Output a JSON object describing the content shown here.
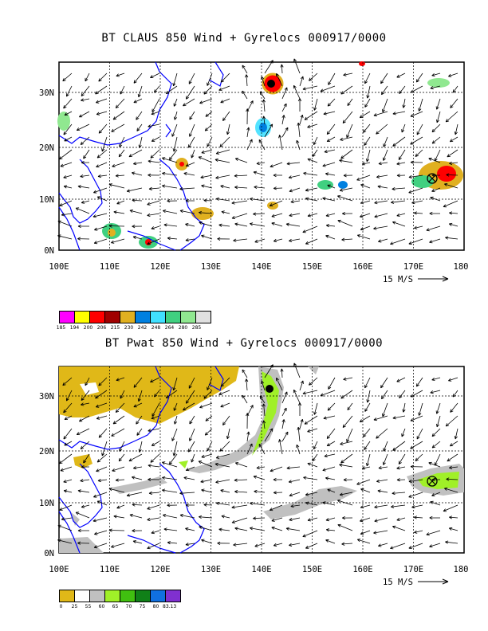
{
  "panel1": {
    "title": "BT CLAUS 850 Wind + Gyrelocs 000917/0000",
    "scale_label": "15 M/S",
    "legend": {
      "colors": [
        "#ff00ff",
        "#ffff00",
        "#ff0000",
        "#a00000",
        "#e0b020",
        "#0080e0",
        "#40e0ff",
        "#40d080",
        "#90e890",
        "#e0e0e0"
      ],
      "labels": [
        "185",
        "194",
        "200",
        "206",
        "215",
        "230",
        "242",
        "248",
        "264",
        "280",
        "285"
      ]
    }
  },
  "panel2": {
    "title": "BT Pwat 850 Wind + Gyrelocs 000917/0000",
    "scale_label": "15 M/S",
    "legend": {
      "colors": [
        "#e0b818",
        "#ffffff",
        "#c0c0c0",
        "#a0f028",
        "#40c010",
        "#108018",
        "#1070e0",
        "#8030d0"
      ],
      "labels": [
        "0",
        "25",
        "55",
        "60",
        "65",
        "70",
        "75",
        "80",
        "83.13"
      ]
    }
  },
  "axes": {
    "x_ticks": [
      "100E",
      "110E",
      "120E",
      "130E",
      "140E",
      "150E",
      "160E",
      "170E",
      "180"
    ],
    "y_ticks": [
      "0N",
      "10N",
      "20N",
      "30N"
    ]
  }
}
